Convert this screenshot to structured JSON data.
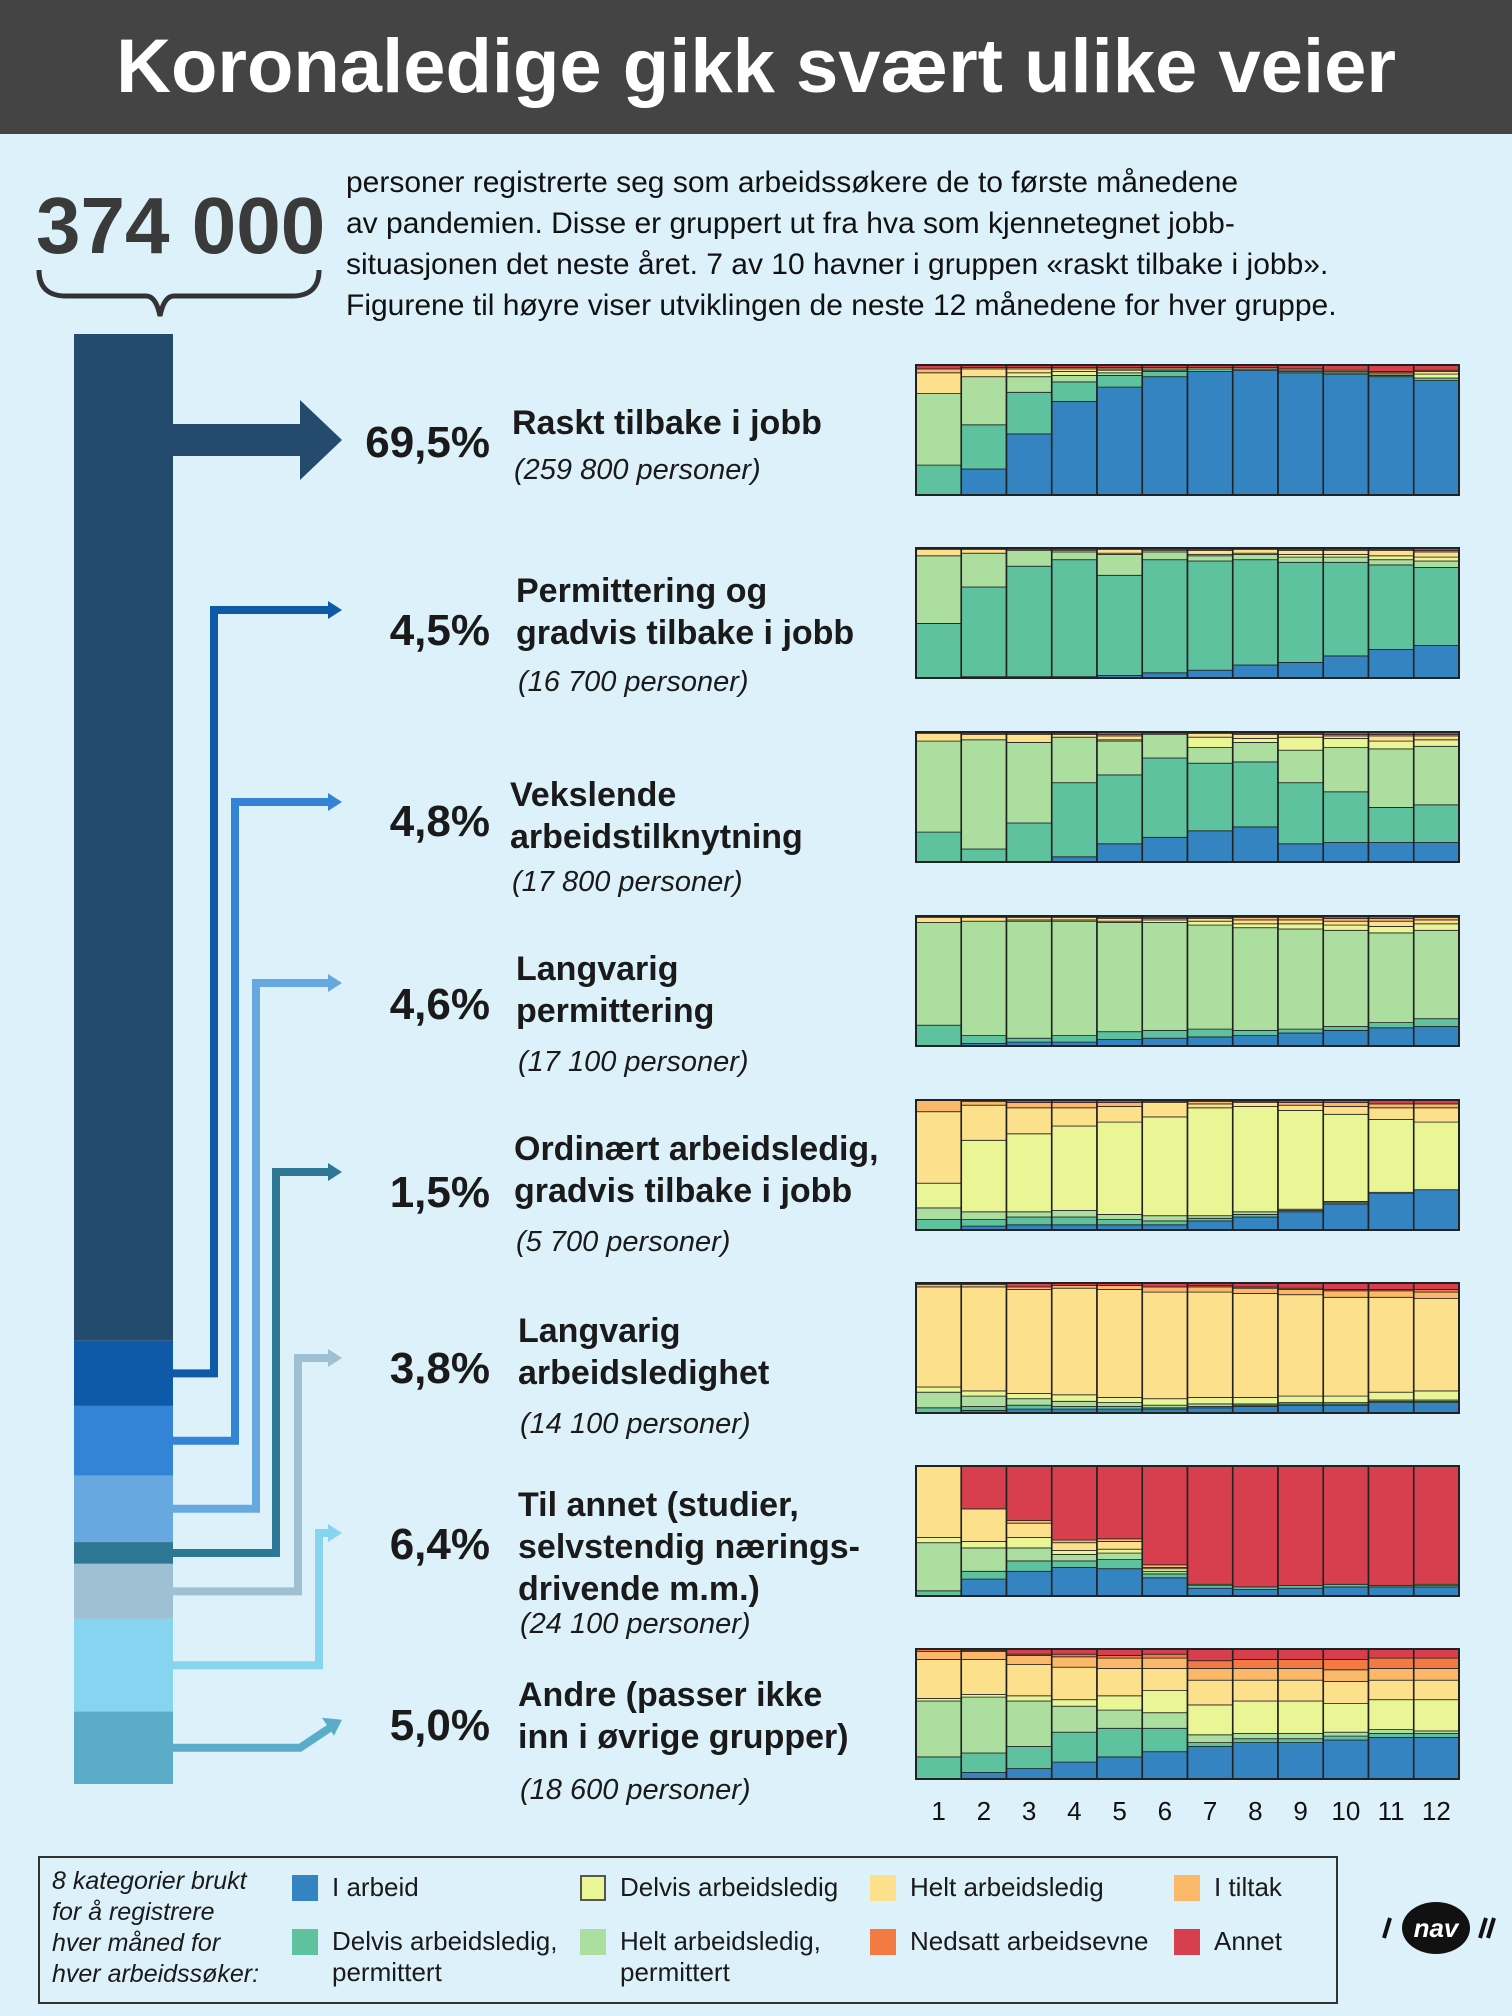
{
  "title": "Koronaledige gikk svært ulike veier",
  "total": "374 000",
  "intro_lines": [
    "personer registrerte seg som arbeidssøkere de to første månedene",
    "av pandemien. Disse er gruppert ut fra hva som kjennetegnet jobb-",
    "situasjonen det neste året. 7 av 10 havner i gruppen «raskt tilbake i jobb».",
    "Figurene til høyre viser utviklingen de neste 12 månedene for hver gruppe."
  ],
  "groups": [
    {
      "pct": "69,5%",
      "name_lines": [
        "Raskt tilbake i jobb"
      ],
      "count": "(259 800 personer)",
      "share": 69.5,
      "color": "#244a6e"
    },
    {
      "pct": "4,5%",
      "name_lines": [
        "Permittering og",
        "gradvis tilbake i jobb"
      ],
      "count": "(16 700 personer)",
      "share": 4.5,
      "color": "#0f5aa8"
    },
    {
      "pct": "4,8%",
      "name_lines": [
        "Vekslende",
        "arbeidstilknytning"
      ],
      "count": "(17 800 personer)",
      "share": 4.8,
      "color": "#3384d6"
    },
    {
      "pct": "4,6%",
      "name_lines": [
        "Langvarig",
        "permittering"
      ],
      "count": "(17 100 personer)",
      "share": 4.6,
      "color": "#68a8e0"
    },
    {
      "pct": "1,5%",
      "name_lines": [
        "Ordinært arbeidsledig,",
        "gradvis tilbake i jobb"
      ],
      "count": "(5 700 personer)",
      "share": 1.5,
      "color": "#2e7795"
    },
    {
      "pct": "3,8%",
      "name_lines": [
        "Langvarig",
        "arbeidsledighet"
      ],
      "count": "(14 100 personer)",
      "share": 3.8,
      "color": "#9fbfd2"
    },
    {
      "pct": "6,4%",
      "name_lines": [
        "Til annet (studier,",
        "selvstendig nærings-",
        "drivende m.m.)"
      ],
      "count": "(24 100 personer)",
      "share": 6.4,
      "color": "#86d4ef"
    },
    {
      "pct": "5,0%",
      "name_lines": [
        "Andre (passer ikke",
        "inn i øvrige grupper)"
      ],
      "count": "(18 600 personer)",
      "share": 5.0,
      "color": "#5aacc8"
    }
  ],
  "legend": {
    "title_lines": [
      "8 kategorier brukt",
      "for å registrere",
      "hver måned for",
      "hver arbeidssøker:"
    ],
    "items": [
      {
        "label_lines": [
          "I arbeid"
        ],
        "color": "#3384c0"
      },
      {
        "label_lines": [
          "Delvis arbeidsledig"
        ],
        "color": "#eaf596"
      },
      {
        "label_lines": [
          "Helt arbeidsledig"
        ],
        "color": "#fde08c"
      },
      {
        "label_lines": [
          "I tiltak"
        ],
        "color": "#fbb869"
      },
      {
        "label_lines": [
          "Delvis arbeidsledig,",
          "permittert"
        ],
        "color": "#5fc29f"
      },
      {
        "label_lines": [
          "Helt arbeidsledig,",
          "permittert"
        ],
        "color": "#acdea0"
      },
      {
        "label_lines": [
          "Nedsatt arbeidsevne"
        ],
        "color": "#f47a44"
      },
      {
        "label_lines": [
          "Annet"
        ],
        "color": "#d83f4e"
      }
    ]
  },
  "logo_text": "nav",
  "chart_data": {
    "type": "bar",
    "subtype": "stacked-100-percent",
    "categories": [
      "1",
      "2",
      "3",
      "4",
      "5",
      "6",
      "7",
      "8",
      "9",
      "10",
      "11",
      "12"
    ],
    "categories_order": [
      "I arbeid",
      "Delvis arbeidsledig, permittert",
      "Helt arbeidsledig, permittert",
      "Delvis arbeidsledig",
      "Helt arbeidsledig",
      "I tiltak",
      "Nedsatt arbeidsevne",
      "Annet"
    ],
    "colors": [
      "#3384c0",
      "#5fc29f",
      "#acdea0",
      "#eaf596",
      "#fde08c",
      "#fbb869",
      "#f47a44",
      "#d83f4e"
    ],
    "panels": [
      {
        "group": "Raskt tilbake i jobb",
        "months": [
          [
            0,
            23,
            55,
            0,
            16,
            3,
            0,
            3
          ],
          [
            20,
            34,
            37,
            0,
            6,
            1,
            0,
            2
          ],
          [
            47,
            32,
            12,
            3,
            3,
            1,
            0,
            2
          ],
          [
            72,
            15,
            5,
            3,
            2,
            1,
            0,
            2
          ],
          [
            83,
            9,
            2,
            2,
            1,
            1,
            0,
            2
          ],
          [
            91,
            4,
            1,
            1,
            1,
            0,
            0,
            2
          ],
          [
            95,
            2,
            0,
            0,
            1,
            0,
            0,
            2
          ],
          [
            96,
            1,
            0,
            0,
            1,
            0,
            0,
            2
          ],
          [
            94,
            1,
            0,
            1,
            1,
            0,
            0,
            3
          ],
          [
            93,
            1,
            0,
            1,
            1,
            0,
            0,
            4
          ],
          [
            91,
            1,
            0,
            1,
            1,
            0,
            1,
            5
          ],
          [
            88,
            2,
            0,
            3,
            2,
            0,
            1,
            4
          ]
        ]
      },
      {
        "group": "Permittering og gradvis tilbake i jobb",
        "months": [
          [
            0,
            42,
            52,
            0,
            5,
            1,
            0,
            0
          ],
          [
            1,
            69,
            26,
            0,
            3,
            1,
            0,
            0
          ],
          [
            1,
            85,
            12,
            0,
            1,
            0,
            0,
            1
          ],
          [
            1,
            90,
            6,
            1,
            1,
            0,
            0,
            1
          ],
          [
            2,
            77,
            16,
            1,
            3,
            0,
            0,
            1
          ],
          [
            4,
            87,
            6,
            1,
            1,
            0,
            0,
            1
          ],
          [
            6,
            84,
            4,
            1,
            3,
            1,
            0,
            1
          ],
          [
            10,
            81,
            4,
            1,
            3,
            0,
            0,
            1
          ],
          [
            12,
            77,
            4,
            2,
            3,
            1,
            0,
            1
          ],
          [
            17,
            72,
            4,
            2,
            3,
            1,
            0,
            1
          ],
          [
            22,
            65,
            4,
            3,
            4,
            1,
            0,
            1
          ],
          [
            25,
            60,
            5,
            3,
            4,
            1,
            0,
            2
          ]
        ]
      },
      {
        "group": "Vekslende arbeidstilknytning",
        "months": [
          [
            0,
            23,
            70,
            0,
            6,
            1,
            0,
            0
          ],
          [
            0,
            10,
            84,
            0,
            4,
            1,
            0,
            1
          ],
          [
            0,
            30,
            62,
            0,
            6,
            1,
            0,
            1
          ],
          [
            4,
            57,
            35,
            0,
            2,
            1,
            0,
            1
          ],
          [
            14,
            53,
            26,
            1,
            3,
            1,
            0,
            2
          ],
          [
            19,
            61,
            18,
            1,
            0,
            0,
            0,
            1
          ],
          [
            24,
            52,
            12,
            8,
            3,
            0,
            0,
            1
          ],
          [
            27,
            50,
            15,
            3,
            3,
            1,
            0,
            1
          ],
          [
            14,
            47,
            25,
            10,
            2,
            1,
            0,
            1
          ],
          [
            15,
            39,
            34,
            7,
            2,
            1,
            0,
            2
          ],
          [
            15,
            27,
            45,
            6,
            4,
            1,
            0,
            2
          ],
          [
            15,
            29,
            45,
            5,
            3,
            1,
            0,
            2
          ]
        ]
      },
      {
        "group": "Langvarig permittering",
        "months": [
          [
            0,
            16,
            79,
            0,
            4,
            1,
            0,
            0
          ],
          [
            2,
            6,
            88,
            0,
            3,
            1,
            0,
            0
          ],
          [
            3,
            3,
            90,
            1,
            2,
            1,
            0,
            0
          ],
          [
            3,
            5,
            88,
            1,
            2,
            1,
            0,
            0
          ],
          [
            5,
            6,
            84,
            1,
            2,
            1,
            0,
            1
          ],
          [
            6,
            6,
            83,
            2,
            1,
            1,
            0,
            1
          ],
          [
            7,
            6,
            80,
            3,
            2,
            1,
            0,
            1
          ],
          [
            8,
            4,
            79,
            3,
            3,
            2,
            0,
            1
          ],
          [
            10,
            3,
            77,
            4,
            3,
            2,
            0,
            1
          ],
          [
            12,
            3,
            74,
            4,
            3,
            2,
            0,
            2
          ],
          [
            14,
            4,
            69,
            5,
            4,
            2,
            0,
            2
          ],
          [
            15,
            6,
            68,
            5,
            3,
            2,
            0,
            1
          ]
        ]
      },
      {
        "group": "Ordinært arbeidsledig, gradvis tilbake i jobb",
        "months": [
          [
            0,
            8,
            9,
            19,
            55,
            9,
            0,
            0
          ],
          [
            3,
            5,
            6,
            55,
            27,
            3,
            0,
            1
          ],
          [
            4,
            6,
            4,
            60,
            20,
            4,
            0,
            2
          ],
          [
            4,
            6,
            5,
            65,
            14,
            4,
            0,
            2
          ],
          [
            4,
            4,
            4,
            71,
            12,
            3,
            0,
            2
          ],
          [
            4,
            3,
            4,
            76,
            11,
            1,
            0,
            1
          ],
          [
            7,
            2,
            2,
            83,
            3,
            2,
            0,
            1
          ],
          [
            10,
            2,
            2,
            81,
            3,
            1,
            0,
            1
          ],
          [
            14,
            1,
            1,
            76,
            4,
            2,
            0,
            2
          ],
          [
            20,
            1,
            1,
            67,
            6,
            3,
            0,
            2
          ],
          [
            28,
            0,
            1,
            56,
            9,
            3,
            0,
            3
          ],
          [
            31,
            0,
            0,
            52,
            11,
            3,
            0,
            3
          ]
        ]
      },
      {
        "group": "Langvarig arbeidsledighet",
        "months": [
          [
            0,
            4,
            12,
            4,
            77,
            2,
            0,
            1
          ],
          [
            2,
            3,
            8,
            4,
            80,
            2,
            0,
            1
          ],
          [
            3,
            3,
            5,
            4,
            80,
            2,
            0,
            3
          ],
          [
            3,
            2,
            4,
            5,
            82,
            2,
            0,
            2
          ],
          [
            3,
            2,
            3,
            4,
            83,
            3,
            0,
            2
          ],
          [
            3,
            1,
            2,
            5,
            82,
            4,
            0,
            3
          ],
          [
            4,
            1,
            2,
            5,
            81,
            4,
            1,
            2
          ],
          [
            5,
            1,
            1,
            5,
            80,
            4,
            1,
            3
          ],
          [
            6,
            1,
            1,
            5,
            78,
            4,
            1,
            4
          ],
          [
            6,
            1,
            1,
            5,
            76,
            5,
            1,
            5
          ],
          [
            8,
            1,
            1,
            6,
            73,
            5,
            1,
            5
          ],
          [
            8,
            1,
            1,
            7,
            71,
            5,
            2,
            5
          ]
        ]
      },
      {
        "group": "Til annet (studier, selvstendig nærings-drivende m.m.)",
        "months": [
          [
            0,
            4,
            37,
            4,
            55,
            0,
            0,
            0
          ],
          [
            13,
            6,
            18,
            5,
            25,
            0,
            0,
            33
          ],
          [
            19,
            8,
            10,
            8,
            11,
            2,
            0,
            42
          ],
          [
            22,
            5,
            5,
            3,
            6,
            2,
            0,
            57
          ],
          [
            21,
            7,
            5,
            3,
            6,
            2,
            0,
            56
          ],
          [
            14,
            3,
            2,
            2,
            1,
            2,
            0,
            76
          ],
          [
            6,
            2,
            0,
            0,
            1,
            0,
            0,
            91
          ],
          [
            5,
            2,
            0,
            0,
            0,
            0,
            0,
            93
          ],
          [
            6,
            2,
            0,
            0,
            0,
            0,
            0,
            92
          ],
          [
            7,
            2,
            0,
            0,
            0,
            0,
            0,
            91
          ],
          [
            7,
            1,
            0,
            0,
            0,
            0,
            0,
            92
          ],
          [
            7,
            1,
            0,
            1,
            0,
            0,
            0,
            91
          ]
        ]
      },
      {
        "group": "Andre (passer ikke inn i øvrige grupper)",
        "months": [
          [
            0,
            17,
            43,
            2,
            30,
            6,
            2,
            0
          ],
          [
            5,
            15,
            43,
            2,
            27,
            6,
            1,
            1
          ],
          [
            8,
            17,
            35,
            4,
            24,
            7,
            1,
            4
          ],
          [
            13,
            23,
            20,
            5,
            25,
            8,
            2,
            4
          ],
          [
            17,
            22,
            14,
            11,
            21,
            8,
            2,
            5
          ],
          [
            21,
            18,
            12,
            17,
            17,
            8,
            3,
            4
          ],
          [
            25,
            3,
            6,
            23,
            19,
            9,
            6,
            9
          ],
          [
            28,
            3,
            4,
            25,
            16,
            9,
            7,
            8
          ],
          [
            28,
            3,
            4,
            25,
            16,
            9,
            7,
            8
          ],
          [
            30,
            3,
            3,
            22,
            17,
            9,
            8,
            8
          ],
          [
            32,
            3,
            3,
            23,
            15,
            9,
            8,
            7
          ],
          [
            32,
            3,
            2,
            24,
            15,
            9,
            8,
            7
          ]
        ]
      }
    ]
  }
}
